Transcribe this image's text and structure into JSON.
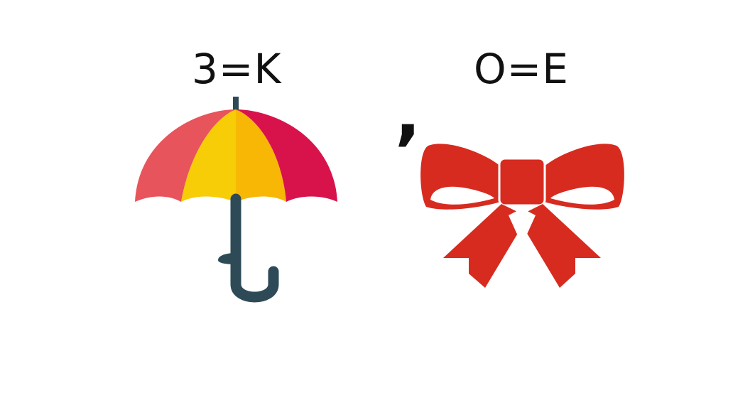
{
  "puzzle": {
    "rules": [
      {
        "text": "3=K"
      },
      {
        "text": "O=E"
      }
    ],
    "separator": ",",
    "pictures": [
      {
        "icon": "umbrella-icon",
        "colors": [
          "#e8545b",
          "#f7cd07",
          "#f8b705",
          "#d8134c",
          "#2e4a57"
        ]
      },
      {
        "icon": "bow-icon",
        "colors": [
          "#d72b20"
        ]
      }
    ]
  }
}
